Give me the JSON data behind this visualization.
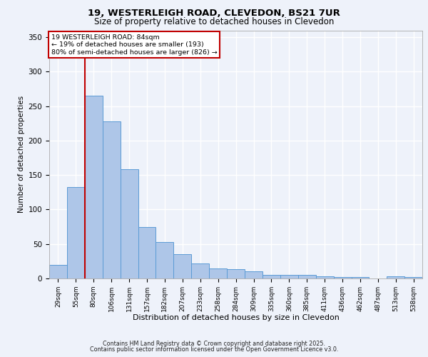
{
  "title1": "19, WESTERLEIGH ROAD, CLEVEDON, BS21 7UR",
  "title2": "Size of property relative to detached houses in Clevedon",
  "xlabel": "Distribution of detached houses by size in Clevedon",
  "ylabel": "Number of detached properties",
  "categories": [
    "29sqm",
    "55sqm",
    "80sqm",
    "106sqm",
    "131sqm",
    "157sqm",
    "182sqm",
    "207sqm",
    "233sqm",
    "258sqm",
    "284sqm",
    "309sqm",
    "335sqm",
    "360sqm",
    "385sqm",
    "411sqm",
    "436sqm",
    "462sqm",
    "487sqm",
    "513sqm",
    "538sqm"
  ],
  "values": [
    20,
    133,
    265,
    228,
    158,
    75,
    53,
    35,
    22,
    15,
    13,
    10,
    5,
    5,
    5,
    3,
    2,
    2,
    0,
    3,
    2
  ],
  "bar_color": "#aec6e8",
  "bar_edge_color": "#5b9bd5",
  "bar_width": 1.0,
  "vline_index": 2,
  "vline_color": "#c00000",
  "annotation_title": "19 WESTERLEIGH ROAD: 84sqm",
  "annotation_line1": "← 19% of detached houses are smaller (193)",
  "annotation_line2": "80% of semi-detached houses are larger (826) →",
  "annotation_box_color": "#c00000",
  "background_color": "#eef2fa",
  "grid_color": "#ffffff",
  "ylim": [
    0,
    360
  ],
  "yticks": [
    0,
    50,
    100,
    150,
    200,
    250,
    300,
    350
  ],
  "footer1": "Contains HM Land Registry data © Crown copyright and database right 2025.",
  "footer2": "Contains public sector information licensed under the Open Government Licence v3.0."
}
